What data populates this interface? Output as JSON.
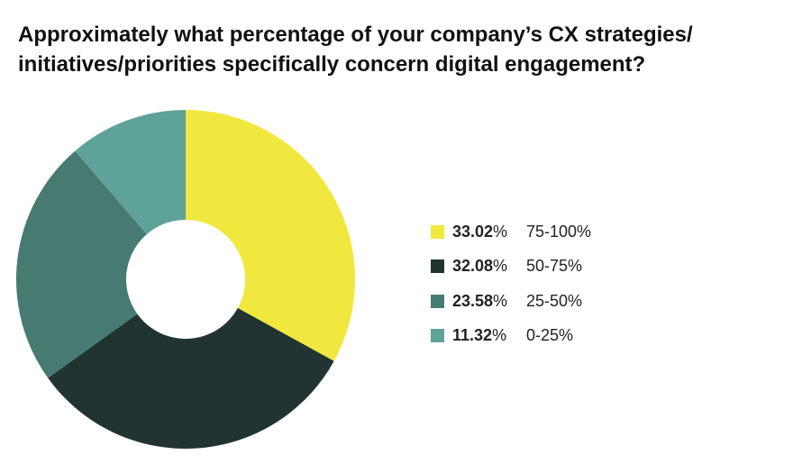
{
  "header": {
    "title_line1": "Approximately what percentage of your company’s CX strategies/",
    "title_line2": "initiatives/priorities specifically concern digital engagement?"
  },
  "chart_data": {
    "type": "pie",
    "variant": "donut",
    "title": "Approximately what percentage of your company’s CX strategies/ initiatives/priorities specifically concern digital engagement?",
    "legend_position": "right",
    "slices": [
      {
        "label": "75-100%",
        "value": 33.02,
        "value_text": "33.02",
        "color": "#F0E83E"
      },
      {
        "label": "50-75%",
        "value": 32.08,
        "value_text": "32.08",
        "color": "#213431"
      },
      {
        "label": "25-50%",
        "value": 23.58,
        "value_text": "23.58",
        "color": "#477A70"
      },
      {
        "label": "0-25%",
        "value": 11.32,
        "value_text": "11.32",
        "color": "#5FA298"
      }
    ],
    "percent_sign": "%"
  }
}
